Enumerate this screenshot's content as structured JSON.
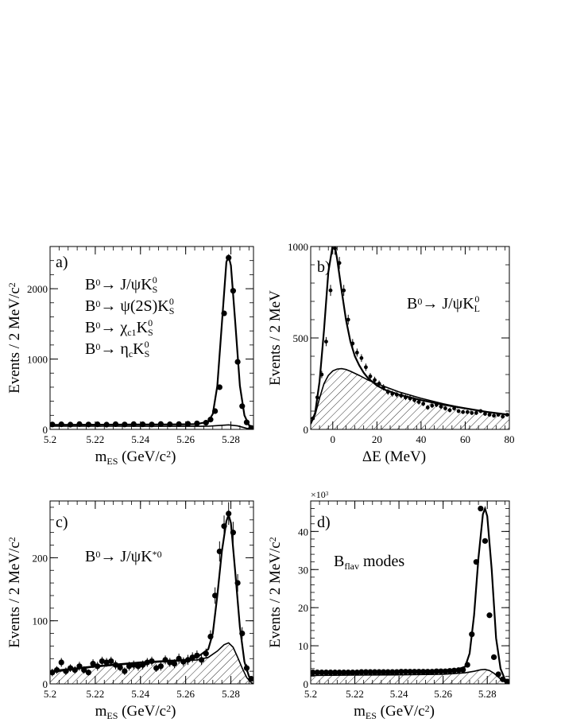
{
  "chart_data": [
    {
      "id": "a",
      "type": "scatter",
      "panel_label": "a)",
      "process_lines": [
        {
          "segs": [
            {
              "t": "B",
              "s": "n"
            },
            {
              "t": "0",
              "s": "sup"
            },
            {
              "t": "→ J/ψK",
              "s": "n"
            },
            {
              "t": "S",
              "s": "sub"
            },
            {
              "t": "0",
              "s": "sup2"
            }
          ]
        },
        {
          "segs": [
            {
              "t": "B",
              "s": "n"
            },
            {
              "t": "0",
              "s": "sup"
            },
            {
              "t": "→ ψ(2S)K",
              "s": "n"
            },
            {
              "t": "S",
              "s": "sub"
            },
            {
              "t": "0",
              "s": "sup2"
            }
          ]
        },
        {
          "segs": [
            {
              "t": "B",
              "s": "n"
            },
            {
              "t": "0",
              "s": "sup"
            },
            {
              "t": "→ χ",
              "s": "n"
            },
            {
              "t": "c1",
              "s": "sub"
            },
            {
              "t": "K",
              "s": "n"
            },
            {
              "t": "S",
              "s": "sub"
            },
            {
              "t": "0",
              "s": "sup2"
            }
          ]
        },
        {
          "segs": [
            {
              "t": "B",
              "s": "n"
            },
            {
              "t": "0",
              "s": "sup"
            },
            {
              "t": "→ η",
              "s": "n"
            },
            {
              "t": "c",
              "s": "sub"
            },
            {
              "t": "K",
              "s": "n"
            },
            {
              "t": "S",
              "s": "sub"
            },
            {
              "t": "0",
              "s": "sup2"
            }
          ]
        }
      ],
      "xlabel": {
        "segs": [
          {
            "t": "m",
            "s": "n"
          },
          {
            "t": "ES",
            "s": "sub"
          },
          {
            "t": " (GeV/c",
            "s": "n"
          },
          {
            "t": "2",
            "s": "sup"
          },
          {
            "t": ")",
            "s": "n"
          }
        ]
      },
      "ylabel": {
        "segs": [
          {
            "t": "Events / 2 MeV/c",
            "s": "n"
          },
          {
            "t": "2",
            "s": "sup"
          }
        ]
      },
      "xlim": [
        5.2,
        5.29
      ],
      "ylim": [
        0,
        2600
      ],
      "xticks": [
        5.2,
        5.22,
        5.24,
        5.26,
        5.28
      ],
      "xtick_labels": [
        "5.2",
        "5.22",
        "5.24",
        "5.26",
        "5.28"
      ],
      "yticks": [
        0,
        1000,
        2000
      ],
      "ytick_labels": [
        "0",
        "1000",
        "2000"
      ],
      "x": [
        5.201,
        5.205,
        5.209,
        5.213,
        5.217,
        5.221,
        5.225,
        5.229,
        5.233,
        5.237,
        5.241,
        5.245,
        5.249,
        5.253,
        5.257,
        5.261,
        5.265,
        5.269,
        5.271,
        5.273,
        5.275,
        5.277,
        5.279,
        5.281,
        5.283,
        5.285,
        5.287,
        5.289
      ],
      "y": [
        70,
        72,
        68,
        75,
        70,
        72,
        68,
        74,
        70,
        75,
        72,
        70,
        76,
        72,
        75,
        80,
        85,
        95,
        140,
        260,
        600,
        1650,
        2440,
        1970,
        960,
        330,
        100,
        20
      ],
      "yerr": [],
      "fit_total": {
        "x": [
          5.2,
          5.21,
          5.22,
          5.23,
          5.24,
          5.25,
          5.26,
          5.265,
          5.27,
          5.272,
          5.274,
          5.276,
          5.278,
          5.279,
          5.28,
          5.282,
          5.284,
          5.286,
          5.288,
          5.29
        ],
        "y": [
          65,
          66,
          67,
          68,
          69,
          70,
          72,
          76,
          110,
          220,
          620,
          1500,
          2380,
          2460,
          2330,
          1500,
          620,
          200,
          60,
          30
        ]
      },
      "fit_background": {
        "x": [
          5.2,
          5.22,
          5.24,
          5.26,
          5.27,
          5.275,
          5.279,
          5.283,
          5.287,
          5.29
        ],
        "y": [
          45,
          45,
          44,
          44,
          45,
          55,
          65,
          50,
          15,
          0
        ]
      },
      "bg_hatched": false
    },
    {
      "id": "b",
      "type": "scatter",
      "panel_label": "b)",
      "process_lines": [
        {
          "segs": [
            {
              "t": "B",
              "s": "n"
            },
            {
              "t": "0",
              "s": "sup"
            },
            {
              "t": "→ J/ψK",
              "s": "n"
            },
            {
              "t": "L",
              "s": "sub"
            },
            {
              "t": "0",
              "s": "sup2"
            }
          ]
        }
      ],
      "xlabel": {
        "segs": [
          {
            "t": "ΔE (MeV)",
            "s": "n"
          }
        ]
      },
      "ylabel": {
        "segs": [
          {
            "t": "Events / 2 MeV",
            "s": "n"
          }
        ]
      },
      "xlim": [
        -10,
        80
      ],
      "ylim": [
        0,
        1000
      ],
      "xticks": [
        0,
        20,
        40,
        60,
        80
      ],
      "xtick_labels": [
        "0",
        "20",
        "40",
        "60",
        "80"
      ],
      "yticks": [
        0,
        500,
        1000
      ],
      "ytick_labels": [
        "0",
        "500",
        "1000"
      ],
      "x": [
        -9,
        -7,
        -5,
        -3,
        -1,
        1,
        3,
        5,
        7,
        9,
        11,
        13,
        15,
        17,
        19,
        21,
        23,
        25,
        27,
        29,
        31,
        33,
        35,
        37,
        39,
        41,
        43,
        45,
        47,
        49,
        51,
        53,
        55,
        57,
        59,
        61,
        63,
        65,
        67,
        69,
        71,
        73,
        75,
        77,
        79
      ],
      "y": [
        60,
        175,
        300,
        480,
        760,
        990,
        910,
        760,
        600,
        470,
        420,
        390,
        340,
        290,
        270,
        250,
        230,
        205,
        195,
        190,
        185,
        175,
        170,
        160,
        150,
        140,
        120,
        130,
        135,
        125,
        115,
        105,
        115,
        100,
        95,
        95,
        90,
        90,
        100,
        85,
        80,
        75,
        80,
        70,
        80
      ],
      "yerr": [
        10,
        15,
        20,
        25,
        30,
        35,
        33,
        30,
        27,
        24,
        22,
        21,
        20,
        18,
        18,
        17,
        17,
        16,
        16,
        15,
        15,
        15,
        15,
        14,
        14,
        13,
        13,
        13,
        13,
        12,
        12,
        12,
        12,
        11,
        11,
        11,
        11,
        11,
        11,
        10,
        10,
        10,
        10,
        10,
        10
      ],
      "fit_total": {
        "x": [
          -10,
          -8,
          -6,
          -4,
          -2,
          0,
          1,
          2,
          4,
          6,
          8,
          10,
          12,
          14,
          16,
          20,
          24,
          30,
          40,
          50,
          60,
          70,
          80
        ],
        "y": [
          30,
          90,
          260,
          540,
          860,
          1010,
          1000,
          930,
          760,
          600,
          480,
          400,
          350,
          310,
          280,
          240,
          215,
          190,
          160,
          135,
          115,
          95,
          80
        ]
      },
      "fit_background": {
        "x": [
          -10,
          -8,
          -6,
          -4,
          -2,
          0,
          2,
          4,
          6,
          8,
          12,
          16,
          20,
          30,
          40,
          50,
          60,
          70,
          80
        ],
        "y": [
          30,
          80,
          170,
          250,
          295,
          320,
          330,
          332,
          328,
          318,
          295,
          270,
          250,
          205,
          170,
          140,
          115,
          95,
          80
        ]
      },
      "bg_hatched": true
    },
    {
      "id": "c",
      "type": "scatter",
      "panel_label": "c)",
      "process_lines": [
        {
          "segs": [
            {
              "t": "B",
              "s": "n"
            },
            {
              "t": "0",
              "s": "sup"
            },
            {
              "t": "→ J/ψK",
              "s": "n"
            },
            {
              "t": "*0",
              "s": "sup"
            }
          ]
        }
      ],
      "xlabel": {
        "segs": [
          {
            "t": "m",
            "s": "n"
          },
          {
            "t": "ES",
            "s": "sub"
          },
          {
            "t": " (GeV/c",
            "s": "n"
          },
          {
            "t": "2",
            "s": "sup"
          },
          {
            "t": ")",
            "s": "n"
          }
        ]
      },
      "ylabel": {
        "segs": [
          {
            "t": "Events / 2 MeV/c",
            "s": "n"
          },
          {
            "t": "2",
            "s": "sup"
          }
        ]
      },
      "xlim": [
        5.2,
        5.29
      ],
      "ylim": [
        0,
        290
      ],
      "xticks": [
        5.2,
        5.22,
        5.24,
        5.26,
        5.28
      ],
      "xtick_labels": [
        "5.2",
        "5.22",
        "5.24",
        "5.26",
        "5.28"
      ],
      "yticks": [
        0,
        100,
        200
      ],
      "ytick_labels": [
        "0",
        "100",
        "200"
      ],
      "x": [
        5.201,
        5.203,
        5.205,
        5.207,
        5.209,
        5.211,
        5.213,
        5.215,
        5.217,
        5.219,
        5.221,
        5.223,
        5.225,
        5.227,
        5.229,
        5.231,
        5.233,
        5.235,
        5.237,
        5.239,
        5.241,
        5.243,
        5.245,
        5.247,
        5.249,
        5.251,
        5.253,
        5.255,
        5.257,
        5.259,
        5.261,
        5.263,
        5.265,
        5.267,
        5.269,
        5.271,
        5.273,
        5.275,
        5.277,
        5.279,
        5.281,
        5.283,
        5.285,
        5.287,
        5.289
      ],
      "y": [
        18,
        22,
        34,
        20,
        25,
        22,
        28,
        22,
        18,
        32,
        28,
        36,
        34,
        36,
        30,
        26,
        20,
        28,
        30,
        28,
        30,
        34,
        36,
        25,
        28,
        38,
        34,
        32,
        40,
        35,
        38,
        42,
        45,
        38,
        48,
        75,
        140,
        210,
        250,
        270,
        240,
        160,
        80,
        25,
        8
      ],
      "yerr": [
        6,
        6,
        7,
        6,
        6,
        6,
        7,
        6,
        5,
        7,
        7,
        7,
        7,
        7,
        7,
        6,
        6,
        7,
        7,
        7,
        7,
        7,
        7,
        6,
        7,
        7,
        7,
        7,
        8,
        7,
        8,
        8,
        8,
        8,
        8,
        10,
        13,
        16,
        17,
        18,
        17,
        14,
        10,
        6,
        4
      ],
      "fit_total": {
        "x": [
          5.2,
          5.22,
          5.24,
          5.26,
          5.265,
          5.27,
          5.272,
          5.274,
          5.276,
          5.278,
          5.279,
          5.28,
          5.282,
          5.284,
          5.286,
          5.288,
          5.29
        ],
        "y": [
          20,
          28,
          34,
          38,
          42,
          55,
          80,
          140,
          210,
          258,
          268,
          255,
          175,
          90,
          35,
          12,
          5
        ]
      },
      "fit_background": {
        "x": [
          5.2,
          5.21,
          5.22,
          5.23,
          5.24,
          5.25,
          5.26,
          5.265,
          5.27,
          5.274,
          5.277,
          5.279,
          5.281,
          5.283,
          5.285,
          5.287,
          5.289,
          5.29
        ],
        "y": [
          18,
          23,
          27,
          30,
          33,
          35,
          37,
          38,
          42,
          52,
          62,
          65,
          58,
          42,
          25,
          10,
          2,
          0
        ]
      },
      "bg_hatched": true
    },
    {
      "id": "d",
      "type": "scatter",
      "panel_label": "d)",
      "multiplier": {
        "segs": [
          {
            "t": "×10",
            "s": "n"
          },
          {
            "t": "3",
            "s": "sup"
          }
        ]
      },
      "process_lines": [
        {
          "segs": [
            {
              "t": "B",
              "s": "n"
            },
            {
              "t": "flav",
              "s": "sub"
            },
            {
              "t": " modes",
              "s": "n"
            }
          ]
        }
      ],
      "xlabel": {
        "segs": [
          {
            "t": "m",
            "s": "n"
          },
          {
            "t": "ES",
            "s": "sub"
          },
          {
            "t": " (GeV/c",
            "s": "n"
          },
          {
            "t": "2",
            "s": "sup"
          },
          {
            "t": ")",
            "s": "n"
          }
        ]
      },
      "ylabel": {
        "segs": [
          {
            "t": "Events / 2 MeV/c",
            "s": "n"
          },
          {
            "t": "2",
            "s": "sup"
          }
        ]
      },
      "xlim": [
        5.2,
        5.29
      ],
      "ylim": [
        0,
        48
      ],
      "xticks": [
        5.2,
        5.22,
        5.24,
        5.26,
        5.28
      ],
      "xtick_labels": [
        "5.2",
        "5.22",
        "5.24",
        "5.26",
        "5.28"
      ],
      "yticks": [
        0,
        10,
        20,
        30,
        40
      ],
      "ytick_labels": [
        "0",
        "10",
        "20",
        "30",
        "40"
      ],
      "x": [
        5.201,
        5.203,
        5.205,
        5.207,
        5.209,
        5.211,
        5.213,
        5.215,
        5.217,
        5.219,
        5.221,
        5.223,
        5.225,
        5.227,
        5.229,
        5.231,
        5.233,
        5.235,
        5.237,
        5.239,
        5.241,
        5.243,
        5.245,
        5.247,
        5.249,
        5.251,
        5.253,
        5.255,
        5.257,
        5.259,
        5.261,
        5.263,
        5.265,
        5.267,
        5.269,
        5.271,
        5.273,
        5.275,
        5.277,
        5.279,
        5.281,
        5.283,
        5.285,
        5.287,
        5.289
      ],
      "y": [
        3.0,
        3.0,
        3.0,
        3.0,
        3.0,
        3.0,
        3.0,
        3.0,
        3.0,
        3.0,
        3.0,
        3.1,
        3.1,
        3.1,
        3.1,
        3.1,
        3.1,
        3.1,
        3.1,
        3.1,
        3.2,
        3.2,
        3.2,
        3.2,
        3.2,
        3.2,
        3.2,
        3.2,
        3.3,
        3.3,
        3.3,
        3.4,
        3.5,
        3.6,
        3.7,
        5,
        13,
        32,
        46,
        37.5,
        18,
        7,
        2.5,
        1.2,
        0.6
      ],
      "yerr": [],
      "fit_total": {
        "x": [
          5.2,
          5.22,
          5.24,
          5.26,
          5.265,
          5.27,
          5.272,
          5.274,
          5.276,
          5.278,
          5.279,
          5.28,
          5.282,
          5.284,
          5.286,
          5.288,
          5.29
        ],
        "y": [
          3.0,
          3.1,
          3.2,
          3.3,
          3.5,
          4.5,
          8,
          18,
          33,
          44.5,
          46,
          44,
          30,
          12,
          4,
          1.2,
          0.5
        ]
      },
      "fit_background": {
        "x": [
          5.2,
          5.22,
          5.24,
          5.26,
          5.265,
          5.27,
          5.274,
          5.277,
          5.279,
          5.281,
          5.283,
          5.285,
          5.287,
          5.29
        ],
        "y": [
          2.2,
          2.3,
          2.35,
          2.5,
          2.7,
          2.9,
          3.3,
          3.7,
          3.8,
          3.5,
          2.8,
          1.8,
          0.8,
          0
        ]
      },
      "bg_hatched": true
    }
  ]
}
